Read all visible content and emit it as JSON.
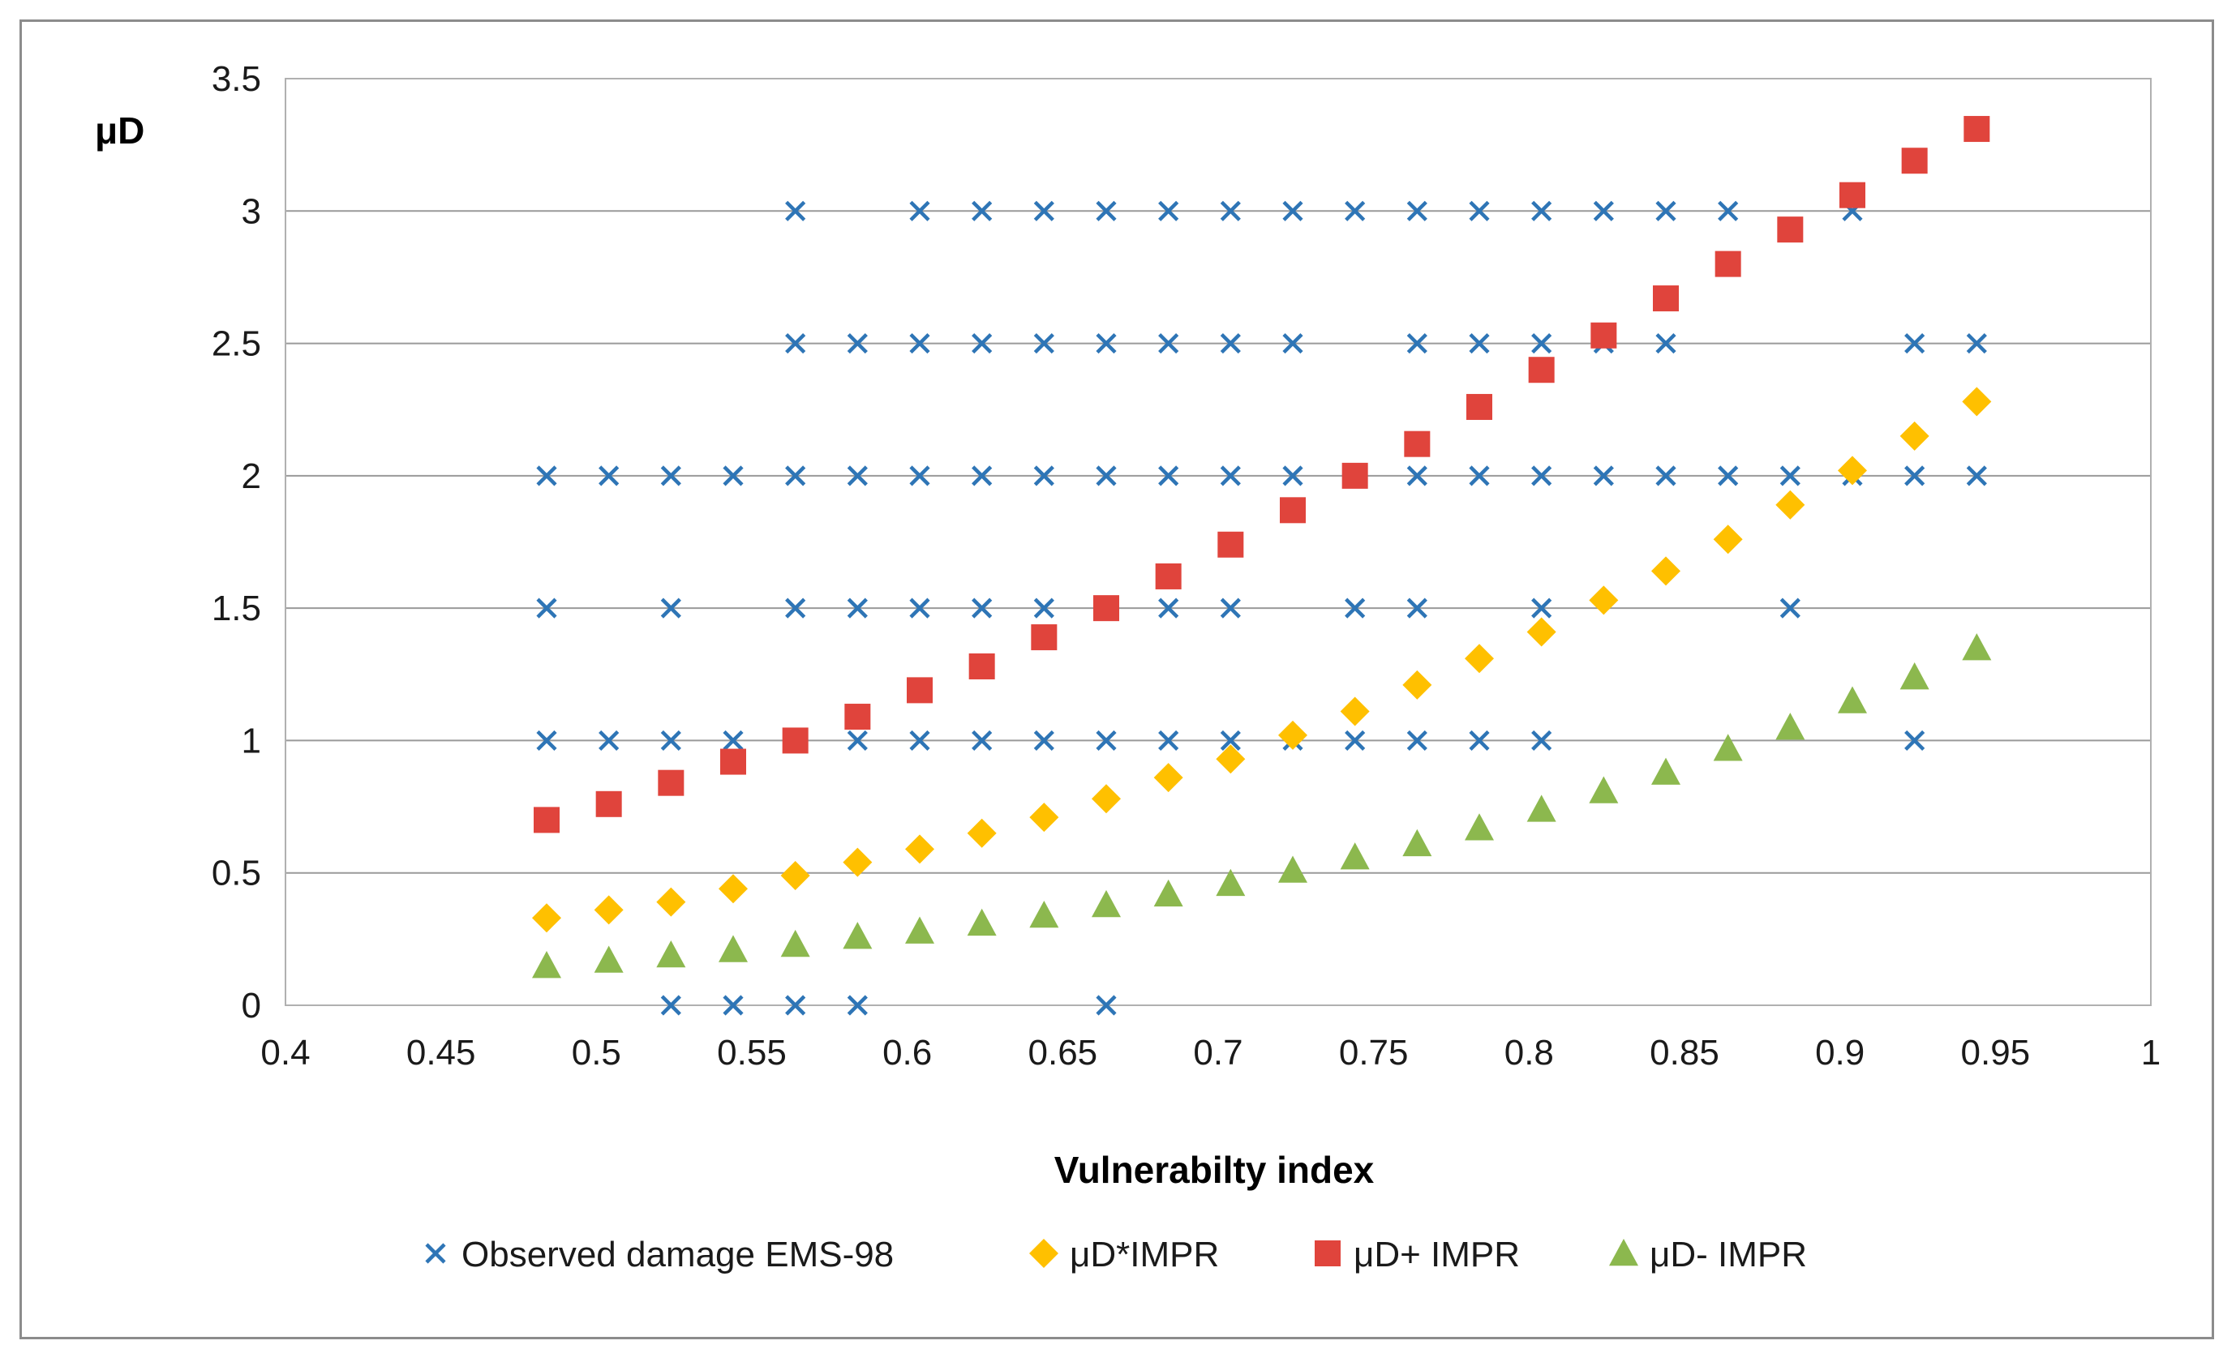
{
  "chart_data": {
    "type": "scatter",
    "title": "",
    "xlabel": "Vulnerabilty index",
    "ylabel": "μD",
    "xlim": [
      0.4,
      1.0
    ],
    "ylim": [
      0,
      3.5
    ],
    "x_ticks": [
      "0.4",
      "0.45",
      "0.5",
      "0.55",
      "0.6",
      "0.65",
      "0.7",
      "0.75",
      "0.8",
      "0.85",
      "0.9",
      "0.95",
      "1"
    ],
    "y_ticks": [
      "0",
      "0.5",
      "1",
      "1.5",
      "2",
      "2.5",
      "3",
      "3.5"
    ],
    "grid": "horizontal",
    "legend_position": "bottom",
    "series": [
      {
        "name": "Observed damage EMS-98",
        "marker": "x",
        "color": "#2E75B6",
        "points": [
          [
            0.484,
            1
          ],
          [
            0.484,
            1.5
          ],
          [
            0.484,
            2
          ],
          [
            0.504,
            1
          ],
          [
            0.504,
            2
          ],
          [
            0.524,
            0
          ],
          [
            0.524,
            1
          ],
          [
            0.524,
            1.5
          ],
          [
            0.524,
            2
          ],
          [
            0.544,
            0
          ],
          [
            0.544,
            1
          ],
          [
            0.544,
            2
          ],
          [
            0.564,
            0
          ],
          [
            0.564,
            1.5
          ],
          [
            0.564,
            2
          ],
          [
            0.564,
            2.5
          ],
          [
            0.564,
            3
          ],
          [
            0.584,
            0
          ],
          [
            0.584,
            1
          ],
          [
            0.584,
            1.5
          ],
          [
            0.584,
            2
          ],
          [
            0.584,
            2.5
          ],
          [
            0.604,
            1
          ],
          [
            0.604,
            1.5
          ],
          [
            0.604,
            2
          ],
          [
            0.604,
            2.5
          ],
          [
            0.604,
            3
          ],
          [
            0.624,
            1
          ],
          [
            0.624,
            1.5
          ],
          [
            0.624,
            2
          ],
          [
            0.624,
            2.5
          ],
          [
            0.624,
            3
          ],
          [
            0.644,
            1
          ],
          [
            0.644,
            1.5
          ],
          [
            0.644,
            2
          ],
          [
            0.644,
            2.5
          ],
          [
            0.644,
            3
          ],
          [
            0.664,
            0
          ],
          [
            0.664,
            1
          ],
          [
            0.664,
            2
          ],
          [
            0.664,
            2.5
          ],
          [
            0.664,
            3
          ],
          [
            0.684,
            1
          ],
          [
            0.684,
            1.5
          ],
          [
            0.684,
            2
          ],
          [
            0.684,
            2.5
          ],
          [
            0.684,
            3
          ],
          [
            0.704,
            1
          ],
          [
            0.704,
            1.5
          ],
          [
            0.704,
            2
          ],
          [
            0.704,
            2.5
          ],
          [
            0.704,
            3
          ],
          [
            0.724,
            1
          ],
          [
            0.724,
            2
          ],
          [
            0.724,
            2.5
          ],
          [
            0.724,
            3
          ],
          [
            0.744,
            1
          ],
          [
            0.744,
            1.5
          ],
          [
            0.744,
            3
          ],
          [
            0.764,
            1
          ],
          [
            0.764,
            1.5
          ],
          [
            0.764,
            2
          ],
          [
            0.764,
            2.5
          ],
          [
            0.764,
            3
          ],
          [
            0.784,
            1
          ],
          [
            0.784,
            2
          ],
          [
            0.784,
            2.5
          ],
          [
            0.784,
            3
          ],
          [
            0.804,
            1
          ],
          [
            0.804,
            1.5
          ],
          [
            0.804,
            2
          ],
          [
            0.804,
            2.5
          ],
          [
            0.804,
            3
          ],
          [
            0.824,
            2
          ],
          [
            0.824,
            2.5
          ],
          [
            0.824,
            3
          ],
          [
            0.844,
            2
          ],
          [
            0.844,
            2.5
          ],
          [
            0.844,
            3
          ],
          [
            0.864,
            2
          ],
          [
            0.864,
            3
          ],
          [
            0.884,
            1.5
          ],
          [
            0.884,
            2
          ],
          [
            0.904,
            2
          ],
          [
            0.904,
            3
          ],
          [
            0.924,
            1
          ],
          [
            0.924,
            2
          ],
          [
            0.924,
            2.5
          ],
          [
            0.944,
            2
          ],
          [
            0.944,
            2.5
          ]
        ]
      },
      {
        "name": "μD*IMPR",
        "marker": "diamond",
        "color": "#FFC000",
        "points": [
          [
            0.484,
            0.33
          ],
          [
            0.504,
            0.36
          ],
          [
            0.524,
            0.39
          ],
          [
            0.544,
            0.44
          ],
          [
            0.564,
            0.49
          ],
          [
            0.584,
            0.54
          ],
          [
            0.604,
            0.59
          ],
          [
            0.624,
            0.65
          ],
          [
            0.644,
            0.71
          ],
          [
            0.664,
            0.78
          ],
          [
            0.684,
            0.86
          ],
          [
            0.704,
            0.93
          ],
          [
            0.724,
            1.02
          ],
          [
            0.744,
            1.11
          ],
          [
            0.764,
            1.21
          ],
          [
            0.784,
            1.31
          ],
          [
            0.804,
            1.41
          ],
          [
            0.824,
            1.53
          ],
          [
            0.844,
            1.64
          ],
          [
            0.864,
            1.76
          ],
          [
            0.884,
            1.89
          ],
          [
            0.904,
            2.02
          ],
          [
            0.924,
            2.15
          ],
          [
            0.944,
            2.28
          ]
        ]
      },
      {
        "name": "μD+ IMPR",
        "marker": "square",
        "color": "#E0443C",
        "points": [
          [
            0.484,
            0.7
          ],
          [
            0.504,
            0.76
          ],
          [
            0.524,
            0.84
          ],
          [
            0.544,
            0.92
          ],
          [
            0.564,
            1.0
          ],
          [
            0.584,
            1.09
          ],
          [
            0.604,
            1.19
          ],
          [
            0.624,
            1.28
          ],
          [
            0.644,
            1.39
          ],
          [
            0.664,
            1.5
          ],
          [
            0.684,
            1.62
          ],
          [
            0.704,
            1.74
          ],
          [
            0.724,
            1.87
          ],
          [
            0.744,
            2.0
          ],
          [
            0.764,
            2.12
          ],
          [
            0.784,
            2.26
          ],
          [
            0.804,
            2.4
          ],
          [
            0.824,
            2.53
          ],
          [
            0.844,
            2.67
          ],
          [
            0.864,
            2.8
          ],
          [
            0.884,
            2.93
          ],
          [
            0.904,
            3.06
          ],
          [
            0.924,
            3.19
          ],
          [
            0.944,
            3.31
          ]
        ]
      },
      {
        "name": "μD- IMPR",
        "marker": "triangle",
        "color": "#8CB84E",
        "points": [
          [
            0.484,
            0.15
          ],
          [
            0.504,
            0.17
          ],
          [
            0.524,
            0.19
          ],
          [
            0.544,
            0.21
          ],
          [
            0.564,
            0.23
          ],
          [
            0.584,
            0.26
          ],
          [
            0.604,
            0.28
          ],
          [
            0.624,
            0.31
          ],
          [
            0.644,
            0.34
          ],
          [
            0.664,
            0.38
          ],
          [
            0.684,
            0.42
          ],
          [
            0.704,
            0.46
          ],
          [
            0.724,
            0.51
          ],
          [
            0.744,
            0.56
          ],
          [
            0.764,
            0.61
          ],
          [
            0.784,
            0.67
          ],
          [
            0.804,
            0.74
          ],
          [
            0.824,
            0.81
          ],
          [
            0.844,
            0.88
          ],
          [
            0.864,
            0.97
          ],
          [
            0.884,
            1.05
          ],
          [
            0.904,
            1.15
          ],
          [
            0.924,
            1.24
          ],
          [
            0.944,
            1.35
          ]
        ]
      }
    ]
  }
}
